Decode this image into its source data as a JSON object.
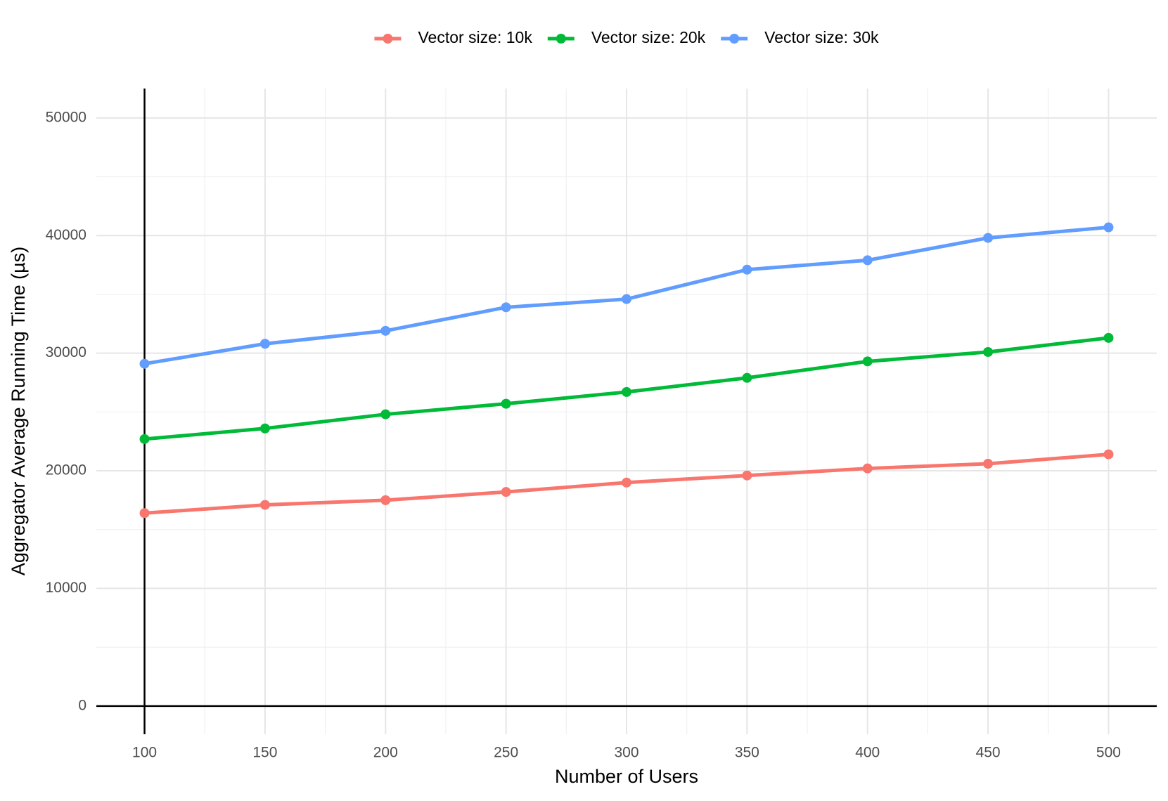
{
  "chart_data": {
    "type": "line",
    "x_label": "Number of Users",
    "y_label": "Aggregator Average Running Time (µs)",
    "x": [
      100,
      150,
      200,
      250,
      300,
      350,
      400,
      450,
      500
    ],
    "series": [
      {
        "name": "Vector size: 10k",
        "color": "#f8766d",
        "values": [
          16400,
          17100,
          17500,
          18200,
          19000,
          19600,
          20200,
          20600,
          21400
        ]
      },
      {
        "name": "Vector size: 20k",
        "color": "#00ba38",
        "values": [
          22700,
          23600,
          24800,
          25700,
          26700,
          27900,
          29300,
          30100,
          31300
        ]
      },
      {
        "name": "Vector size: 30k",
        "color": "#619cff",
        "values": [
          29100,
          30800,
          31900,
          33900,
          34600,
          37100,
          37900,
          39800,
          40700
        ]
      }
    ],
    "xlim": [
      80,
      520
    ],
    "ylim": [
      -2400,
      52500
    ],
    "xticks": [
      100,
      150,
      200,
      250,
      300,
      350,
      400,
      450,
      500
    ],
    "yticks": [
      0,
      10000,
      20000,
      30000,
      40000,
      50000
    ],
    "grid": true,
    "minor_grid": true,
    "legend": "top"
  }
}
